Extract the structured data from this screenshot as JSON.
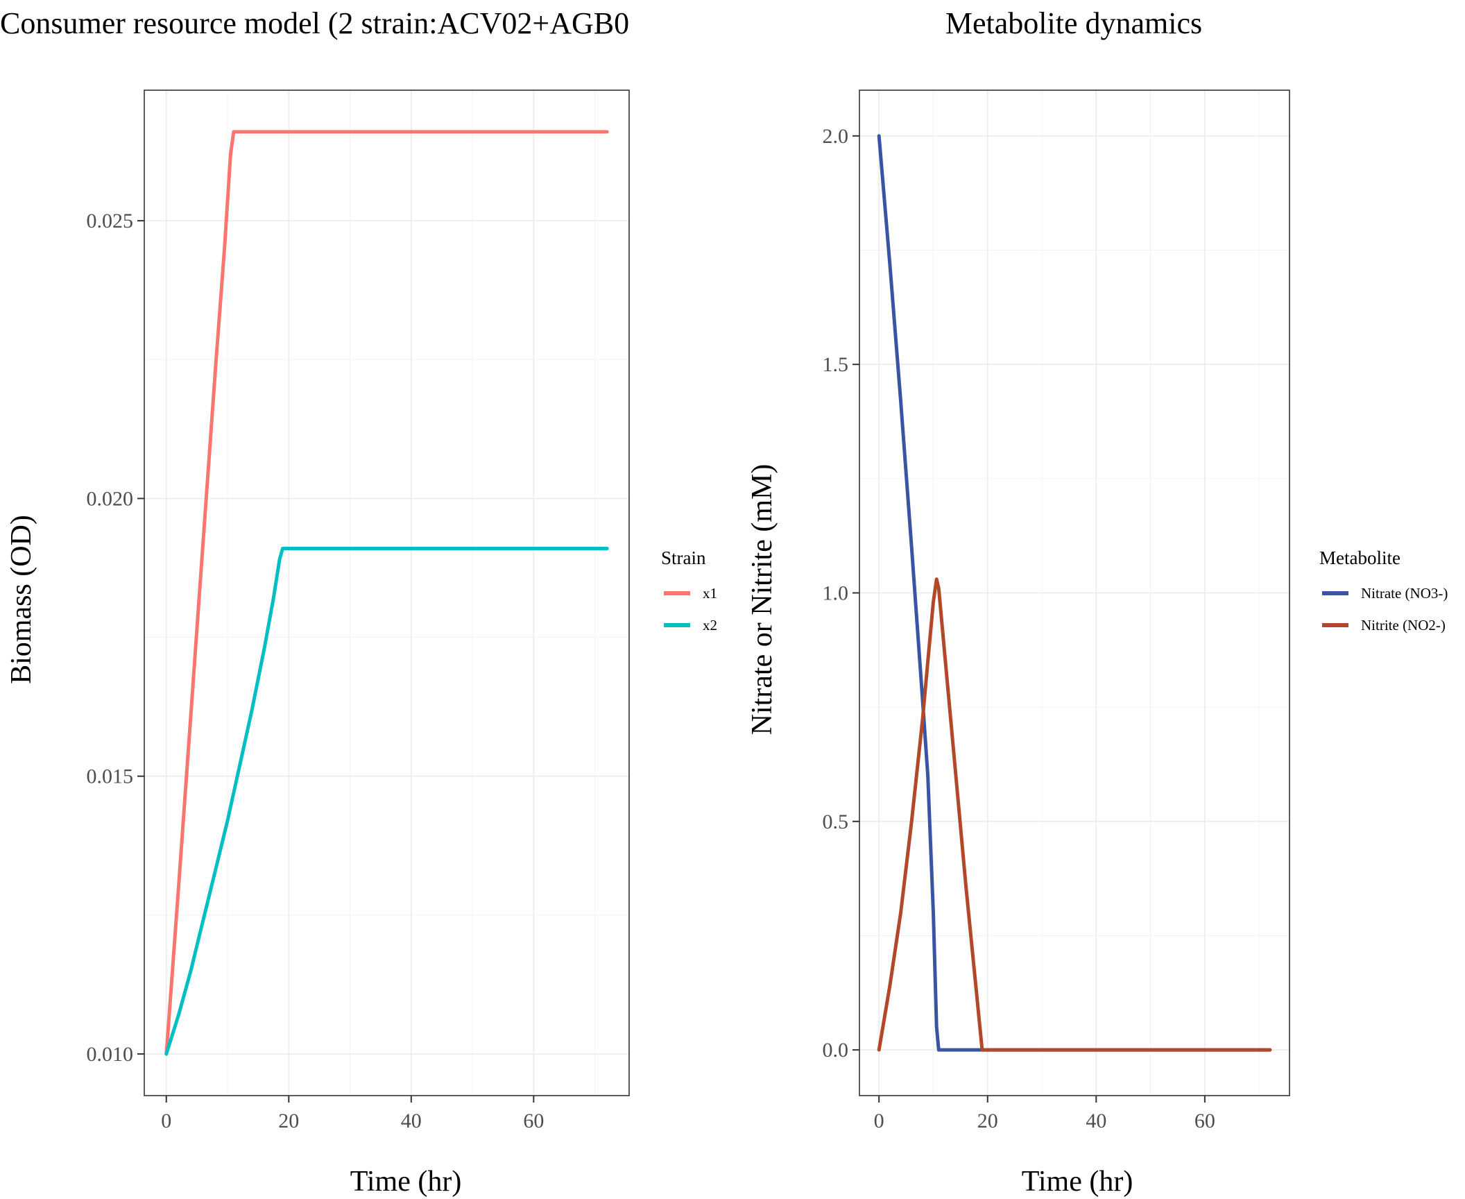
{
  "chart_data": [
    {
      "type": "line",
      "title": "Consumer resource model (2 strain:ACV02+AGB0",
      "xlabel": "Time (hr)",
      "ylabel": "Biomass (OD)",
      "xlim": [
        -3.6,
        75.6
      ],
      "ylim": [
        0.00925,
        0.02735
      ],
      "xticks": [
        0,
        20,
        40,
        60
      ],
      "yticks": [
        0.01,
        0.015,
        0.02,
        0.025
      ],
      "ytick_labels": [
        "0.010",
        "0.015",
        "0.020",
        "0.025"
      ],
      "grid": true,
      "legend": {
        "title": "Strain",
        "position": "right"
      },
      "series": [
        {
          "name": "x1",
          "color": "#F8766D",
          "x": [
            0,
            2,
            4,
            6,
            8,
            9.5,
            10.5,
            11,
            72
          ],
          "y": [
            0.01,
            0.013,
            0.0161,
            0.0192,
            0.0223,
            0.0245,
            0.0262,
            0.0266,
            0.0266
          ]
        },
        {
          "name": "x2",
          "color": "#00BFC4",
          "x": [
            0,
            2,
            4,
            6,
            8,
            10,
            12,
            14,
            16,
            17.5,
            18.5,
            19,
            72
          ],
          "y": [
            0.01,
            0.0107,
            0.0115,
            0.0124,
            0.0133,
            0.0142,
            0.0152,
            0.0162,
            0.0173,
            0.0182,
            0.0189,
            0.0191,
            0.0191
          ]
        }
      ]
    },
    {
      "type": "line",
      "title": "Metabolite dynamics",
      "xlabel": "Time (hr)",
      "ylabel": "Nitrate or Nitrite (mM)",
      "xlim": [
        -3.6,
        75.6
      ],
      "ylim": [
        -0.1,
        2.1
      ],
      "xticks": [
        0,
        20,
        40,
        60
      ],
      "yticks": [
        0.0,
        0.5,
        1.0,
        1.5,
        2.0
      ],
      "ytick_labels": [
        "0.0",
        "0.5",
        "1.0",
        "1.5",
        "2.0"
      ],
      "grid": true,
      "legend": {
        "title": "Metabolite",
        "position": "right"
      },
      "series": [
        {
          "name": "Nitrate (NO3-)",
          "color": "#3A54A4",
          "x": [
            0,
            2,
            4,
            6,
            8,
            9,
            10,
            10.6,
            11,
            19,
            72
          ],
          "y": [
            2.0,
            1.72,
            1.42,
            1.1,
            0.77,
            0.6,
            0.3,
            0.05,
            0.0,
            0.0,
            0.0
          ]
        },
        {
          "name": "Nitrite (NO2-)",
          "color": "#B2472A",
          "x": [
            0,
            2,
            4,
            6,
            8,
            9,
            10,
            10.6,
            11,
            12,
            14,
            16,
            18,
            19,
            72
          ],
          "y": [
            0.0,
            0.14,
            0.3,
            0.5,
            0.72,
            0.85,
            0.98,
            1.03,
            1.01,
            0.88,
            0.62,
            0.36,
            0.12,
            0.0,
            0.0
          ]
        }
      ]
    }
  ]
}
